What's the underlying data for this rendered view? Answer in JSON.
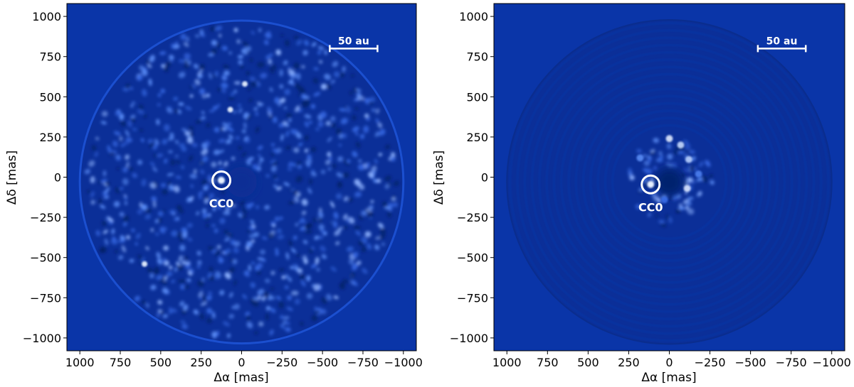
{
  "scale_bar_label": "50 au",
  "panels": [
    {
      "xlabel": "Δα [mas]",
      "ylabel": "Δδ [mas]",
      "xlim": [
        1080,
        -1080
      ],
      "ylim": [
        -1080,
        1080
      ],
      "xticks": [
        1000,
        750,
        500,
        250,
        0,
        -250,
        -500,
        -750,
        -1000
      ],
      "xtick_labels": [
        "1000",
        "750",
        "500",
        "250",
        "0",
        "−250",
        "−500",
        "−750",
        "−1000"
      ],
      "yticks": [
        1000,
        750,
        500,
        250,
        0,
        -250,
        -500,
        -750,
        -1000
      ],
      "ytick_labels": [
        "1000",
        "750",
        "500",
        "250",
        "0",
        "−250",
        "−500",
        "−750",
        "−1000"
      ],
      "source_label": "CC0",
      "source_pos": [
        125,
        -20
      ],
      "scale_bar": [
        -545,
        -840,
        800
      ]
    },
    {
      "xlabel": "Δα [mas]",
      "ylabel": "Δδ [mas]",
      "xlim": [
        1080,
        -1080
      ],
      "ylim": [
        -1080,
        1080
      ],
      "xticks": [
        1000,
        750,
        500,
        250,
        0,
        -250,
        -500,
        -750,
        -1000
      ],
      "xtick_labels": [
        "1000",
        "750",
        "500",
        "250",
        "0",
        "−250",
        "−500",
        "−750",
        "−1000"
      ],
      "yticks": [
        1000,
        750,
        500,
        250,
        0,
        -250,
        -500,
        -750,
        -1000
      ],
      "ytick_labels": [
        "1000",
        "750",
        "500",
        "250",
        "0",
        "−250",
        "−500",
        "−750",
        "−1000"
      ],
      "source_label": "CC0",
      "source_pos": [
        115,
        -45
      ],
      "scale_bar": [
        -545,
        -840,
        800
      ]
    }
  ],
  "colors": {
    "background": "#0a35a8",
    "disk": "#0b2f98",
    "speckle": "#5a8cf5",
    "bright": "#e6f0ff",
    "dark": "#041a5e"
  }
}
